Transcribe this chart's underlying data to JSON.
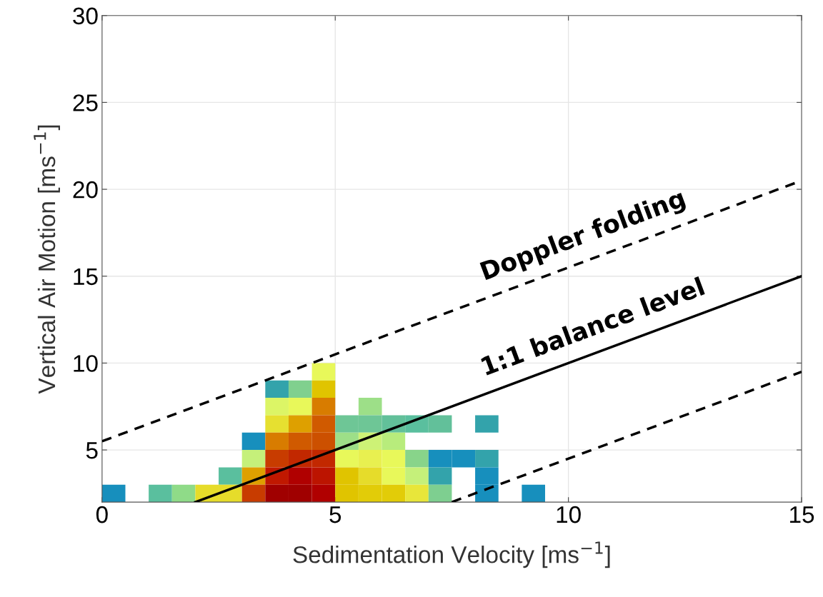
{
  "chart_data": {
    "type": "scatter",
    "xlabel": "Sedimentation Velocity [ms$^{−1}$]",
    "ylabel": "Vertical Air Motion [ms$^{−1}$]",
    "series": [
      {
        "marker": "square",
        "x": [
          4.75,
          3.75,
          4.25,
          4.75,
          3.75,
          4.25,
          4.75,
          5.75,
          3.75,
          4.25,
          4.75,
          5.25,
          5.75,
          6.25,
          6.75,
          7.25,
          8.25,
          3.25,
          3.75,
          4.25,
          4.75,
          5.25,
          5.75,
          6.25,
          3.25,
          3.75,
          4.25,
          4.75,
          5.25,
          5.75,
          6.25,
          6.75,
          7.25,
          7.75,
          8.25,
          2.75,
          3.25,
          3.75,
          4.25,
          4.75,
          5.25,
          5.75,
          6.25,
          6.75,
          7.25,
          8.25,
          0.25,
          1.25,
          1.75,
          2.25,
          2.75,
          3.25,
          3.75,
          4.25,
          4.75,
          5.25,
          5.75,
          6.25,
          6.75,
          7.25,
          8.25,
          9.25
        ],
        "values": [
          9.5,
          8.5,
          8.5,
          8.5,
          7.5,
          7.5,
          7.5,
          7.5,
          6.5,
          6.5,
          6.5,
          6.5,
          6.5,
          6.5,
          6.5,
          6.5,
          6.5,
          5.5,
          5.5,
          5.5,
          5.5,
          5.5,
          5.5,
          5.5,
          4.5,
          4.5,
          4.5,
          4.5,
          4.5,
          4.5,
          4.5,
          4.5,
          4.5,
          4.5,
          4.5,
          3.5,
          3.5,
          3.5,
          3.5,
          3.5,
          3.5,
          3.5,
          3.5,
          3.5,
          3.5,
          3.5,
          2.5,
          2.5,
          2.5,
          2.5,
          2.5,
          2.5,
          2.5,
          2.5,
          2.5,
          2.5,
          2.5,
          2.5,
          2.5,
          2.5,
          2.5,
          2.5
        ],
        "colors": [
          "#e8f85a",
          "#33a3ab",
          "#80d08e",
          "#e0c400",
          "#dcf566",
          "#e8f85a",
          "#d87c00",
          "#9ddf88",
          "#e6e030",
          "#dea000",
          "#d05a00",
          "#6ec696",
          "#6ec696",
          "#62c09a",
          "#5abf9e",
          "#62c09a",
          "#33a3ab",
          "#178fbd",
          "#d87c00",
          "#d05a00",
          "#cc5000",
          "#9ddf88",
          "#cdf276",
          "#b8ec7c",
          "#c5f07a",
          "#c83c00",
          "#c22800",
          "#c22800",
          "#e8f85a",
          "#e8f050",
          "#e8f85a",
          "#88d48a",
          "#178fbd",
          "#178fbd",
          "#33a3ab",
          "#5abf9e",
          "#dea000",
          "#c01800",
          "#b00000",
          "#bc1400",
          "#e0c400",
          "#e6dc2a",
          "#e8f85a",
          "#c5f07a",
          "#33a3ab",
          "#178fbd",
          "#178fbd",
          "#5abf9e",
          "#8fdb88",
          "#e6dc2a",
          "#e6dc2a",
          "#c83c00",
          "#a00000",
          "#a00000",
          "#b00000",
          "#e0c400",
          "#e2cc08",
          "#e2cc08",
          "#e8e63a",
          "#7ecf90",
          "#178fbd",
          "#178fbd"
        ]
      },
      {
        "type": "line",
        "x": [
          0,
          15
        ],
        "values": [
          5.5,
          20.5
        ],
        "color": "#000000",
        "line_style": "dashed"
      },
      {
        "type": "line",
        "x": [
          2,
          15
        ],
        "values": [
          2,
          15
        ],
        "color": "#000000",
        "line_style": "solid"
      },
      {
        "type": "line",
        "x": [
          7.5,
          15
        ],
        "values": [
          2,
          9.5
        ],
        "color": "#000000",
        "line_style": "dashed"
      }
    ],
    "annotations": [
      "Doppler folding",
      "1:1 balance level"
    ],
    "xlim": [
      0,
      15
    ],
    "ylim": [
      2,
      30
    ],
    "xticks": [
      0,
      5,
      10,
      15
    ],
    "yticks": [
      5,
      10,
      15,
      20,
      25,
      30
    ],
    "grid": true
  }
}
